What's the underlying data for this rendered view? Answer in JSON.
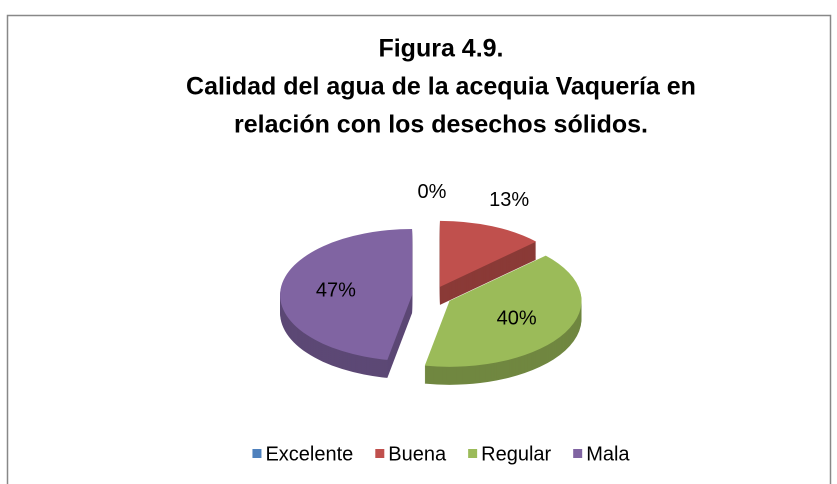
{
  "chart_data": {
    "type": "pie3d",
    "title_lines": [
      "Figura 4.9.",
      "Calidad del agua de la acequia Vaquería en",
      "relación con los desechos sólidos."
    ],
    "categories": [
      "Excelente",
      "Buena",
      "Regular",
      "Mala"
    ],
    "values": [
      0,
      13,
      40,
      47
    ],
    "value_labels": [
      "0%",
      "13%",
      "40%",
      "47%"
    ],
    "colors": [
      "#4f81bd",
      "#c0504d",
      "#9bbb59",
      "#8064a2"
    ],
    "legend": "bottom"
  }
}
